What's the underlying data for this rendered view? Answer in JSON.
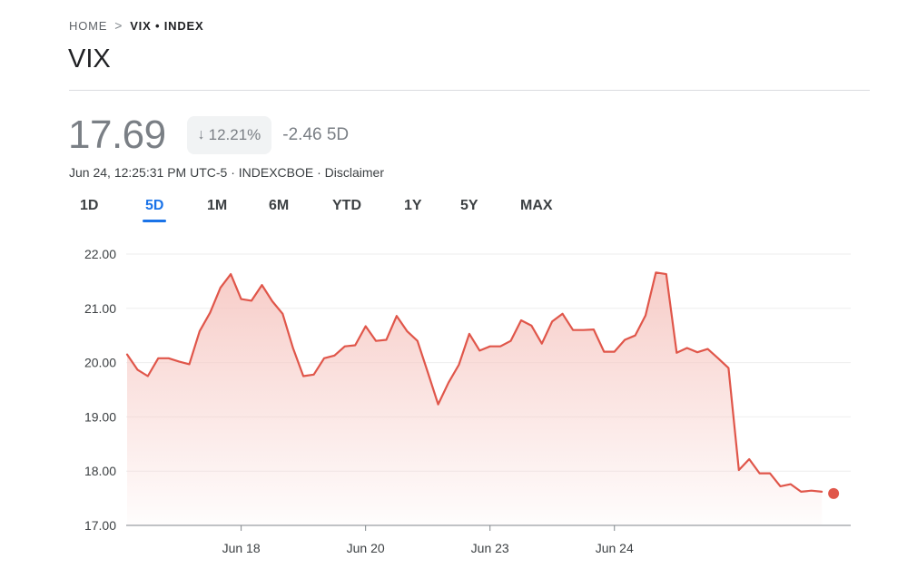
{
  "breadcrumb": {
    "home": "HOME",
    "separator": ">",
    "current": "VIX • INDEX"
  },
  "title": "VIX",
  "quote": {
    "price": "17.69",
    "change_percent": "12.21%",
    "change_abs": "-2.46 5D",
    "meta": "Jun 24, 12:25:31 PM UTC-5 · INDEXCBOE · Disclaimer"
  },
  "tabs": [
    "1D",
    "5D",
    "1M",
    "6M",
    "YTD",
    "1Y",
    "5Y",
    "MAX"
  ],
  "active_tab": "5D",
  "colors": {
    "line": "#e0564a",
    "fill_top": "#f6c7c2",
    "price_gray": "#7a7f85",
    "accent": "#1a73e8",
    "grid": "#eeeeee",
    "axis": "#5f6368"
  },
  "chart_data": {
    "type": "area",
    "ylim": [
      17.0,
      22.0
    ],
    "yticks": [
      "22.00",
      "21.00",
      "20.00",
      "19.00",
      "18.00",
      "17.00"
    ],
    "xticks": [
      {
        "label": "Jun 18",
        "index": 11
      },
      {
        "label": "Jun 20",
        "index": 23
      },
      {
        "label": "Jun 23",
        "index": 35
      },
      {
        "label": "Jun 24",
        "index": 47
      }
    ],
    "grid": true,
    "last_point_marker": true,
    "values": [
      20.15,
      19.87,
      19.75,
      20.08,
      20.08,
      20.02,
      19.97,
      20.58,
      20.92,
      21.38,
      21.63,
      21.17,
      21.14,
      21.43,
      21.13,
      20.9,
      20.27,
      19.75,
      19.78,
      20.08,
      20.13,
      20.3,
      20.32,
      20.67,
      20.4,
      20.42,
      20.86,
      20.58,
      20.4,
      19.82,
      19.23,
      19.63,
      19.96,
      20.53,
      20.22,
      20.3,
      20.3,
      20.4,
      20.78,
      20.68,
      20.35,
      20.76,
      20.9,
      20.6,
      20.6,
      20.61,
      20.2,
      20.2,
      20.42,
      20.5,
      20.87,
      21.66,
      21.63,
      20.18,
      20.27,
      20.19,
      20.25,
      20.08,
      19.9,
      18.02,
      18.22,
      17.96,
      17.96,
      17.72,
      17.76,
      17.62,
      17.64,
      17.62
    ]
  }
}
